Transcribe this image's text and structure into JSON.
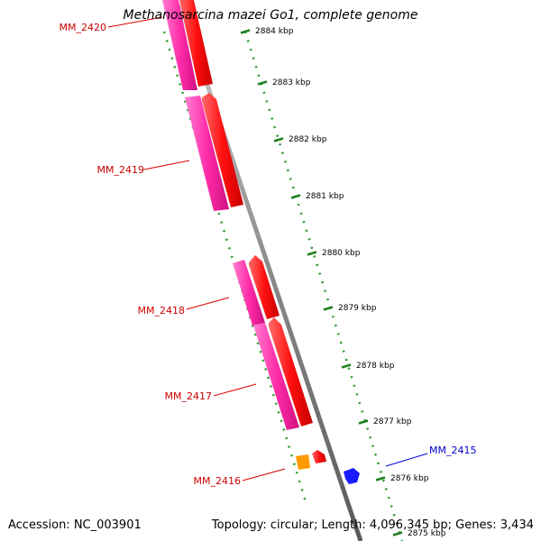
{
  "title": "Methanosarcina mazei Go1, complete genome",
  "accession_text": "Accession: NC_003901",
  "topology_text": "Topology: circular; Length: 4,096,345 bp; Genes: 3,434",
  "colors": {
    "backbone": "#888888",
    "ruler_major": "#1f7f1f",
    "ruler_minor": "#1f9f1f",
    "tick_label": "#000000",
    "gene_red": "#ff1010",
    "gene_pink": "#ff2ca8",
    "gene_orange": "#ff9900",
    "gene_blue": "#1a1aff",
    "label_red": "#cc0000",
    "label_blue": "#0000cc"
  },
  "ruler_ticks": [
    {
      "label": "2884 kbp"
    },
    {
      "label": "2883 kbp"
    },
    {
      "label": "2882 kbp"
    },
    {
      "label": "2881 kbp"
    },
    {
      "label": "2880 kbp"
    },
    {
      "label": "2879 kbp"
    },
    {
      "label": "2878 kbp"
    },
    {
      "label": "2877 kbp"
    },
    {
      "label": "2876 kbp"
    },
    {
      "label": "2875 kbp"
    }
  ],
  "genes": [
    {
      "name": "MM_2420",
      "color": "gene_red"
    },
    {
      "name": "MM_2419",
      "color": "gene_red"
    },
    {
      "name": "MM_2418",
      "color": "gene_red"
    },
    {
      "name": "MM_2417",
      "color": "gene_red"
    },
    {
      "name": "MM_2416",
      "color": "gene_red"
    },
    {
      "name": "MM_2415",
      "color": "gene_blue"
    }
  ]
}
